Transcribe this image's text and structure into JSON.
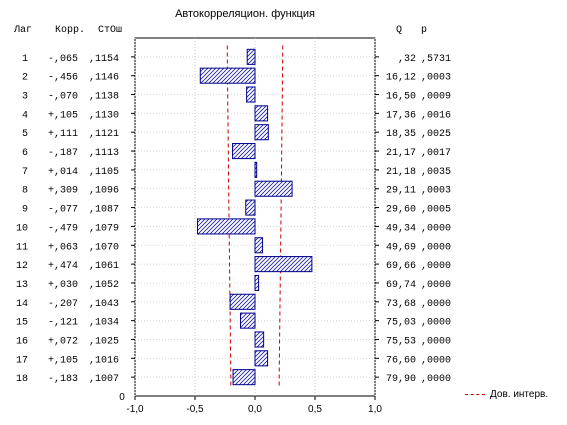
{
  "title": "Автокорреляцион. функция",
  "headers": {
    "lag": "Лаг",
    "corr": "Корр.",
    "se": "СтОш",
    "q": "Q",
    "p": "p"
  },
  "legend": "Дов. интерв.",
  "colors": {
    "bar_stroke": "#00008b",
    "bar_hatch": "#1a1aa0",
    "conf": "#cc0000"
  },
  "chart_data": {
    "type": "bar",
    "orientation": "horizontal",
    "title": "Автокорреляцион. функция",
    "xlim": [
      -1.0,
      1.0
    ],
    "xticks": [
      "-1,0",
      "-0,5",
      "0,0",
      "0,5",
      "1,0"
    ],
    "xtick_values": [
      -1.0,
      -0.5,
      0.0,
      0.5,
      1.0
    ],
    "y_axis_bottom_label": "0",
    "grid": true,
    "legend_position": "bottom-right",
    "rows": [
      {
        "lag": "1",
        "corr": "-,065",
        "se": ",1154",
        "q": ",32",
        "p": ",5731",
        "value": -0.065,
        "se_value": 0.1154
      },
      {
        "lag": "2",
        "corr": "-,456",
        "se": ",1146",
        "q": "16,12",
        "p": ",0003",
        "value": -0.456,
        "se_value": 0.1146
      },
      {
        "lag": "3",
        "corr": "-,070",
        "se": ",1138",
        "q": "16,50",
        "p": ",0009",
        "value": -0.07,
        "se_value": 0.1138
      },
      {
        "lag": "4",
        "corr": "+,105",
        "se": ",1130",
        "q": "17,36",
        "p": ",0016",
        "value": 0.105,
        "se_value": 0.113
      },
      {
        "lag": "5",
        "corr": "+,111",
        "se": ",1121",
        "q": "18,35",
        "p": ",0025",
        "value": 0.111,
        "se_value": 0.1121
      },
      {
        "lag": "6",
        "corr": "-,187",
        "se": ",1113",
        "q": "21,17",
        "p": ",0017",
        "value": -0.187,
        "se_value": 0.1113
      },
      {
        "lag": "7",
        "corr": "+,014",
        "se": ",1105",
        "q": "21,18",
        "p": ",0035",
        "value": 0.014,
        "se_value": 0.1105
      },
      {
        "lag": "8",
        "corr": "+,309",
        "se": ",1096",
        "q": "29,11",
        "p": ",0003",
        "value": 0.309,
        "se_value": 0.1096
      },
      {
        "lag": "9",
        "corr": "-,077",
        "se": ",1087",
        "q": "29,60",
        "p": ",0005",
        "value": -0.077,
        "se_value": 0.1087
      },
      {
        "lag": "10",
        "corr": "-,479",
        "se": ",1079",
        "q": "49,34",
        "p": ",0000",
        "value": -0.479,
        "se_value": 0.1079
      },
      {
        "lag": "11",
        "corr": "+,063",
        "se": ",1070",
        "q": "49,69",
        "p": ",0000",
        "value": 0.063,
        "se_value": 0.107
      },
      {
        "lag": "12",
        "corr": "+,474",
        "se": ",1061",
        "q": "69,66",
        "p": ",0000",
        "value": 0.474,
        "se_value": 0.1061
      },
      {
        "lag": "13",
        "corr": "+,030",
        "se": ",1052",
        "q": "69,74",
        "p": ",0000",
        "value": 0.03,
        "se_value": 0.1052
      },
      {
        "lag": "14",
        "corr": "-,207",
        "se": ",1043",
        "q": "73,68",
        "p": ",0000",
        "value": -0.207,
        "se_value": 0.1043
      },
      {
        "lag": "15",
        "corr": "-,121",
        "se": ",1034",
        "q": "75,03",
        "p": ",0000",
        "value": -0.121,
        "se_value": 0.1034
      },
      {
        "lag": "16",
        "corr": "+,072",
        "se": ",1025",
        "q": "75,53",
        "p": ",0000",
        "value": 0.072,
        "se_value": 0.1025
      },
      {
        "lag": "17",
        "corr": "+,105",
        "se": ",1016",
        "q": "76,60",
        "p": ",0000",
        "value": 0.105,
        "se_value": 0.1016
      },
      {
        "lag": "18",
        "corr": "-,183",
        "se": ",1007",
        "q": "79,90",
        "p": ",0000",
        "value": -0.183,
        "se_value": 0.1007
      }
    ]
  }
}
